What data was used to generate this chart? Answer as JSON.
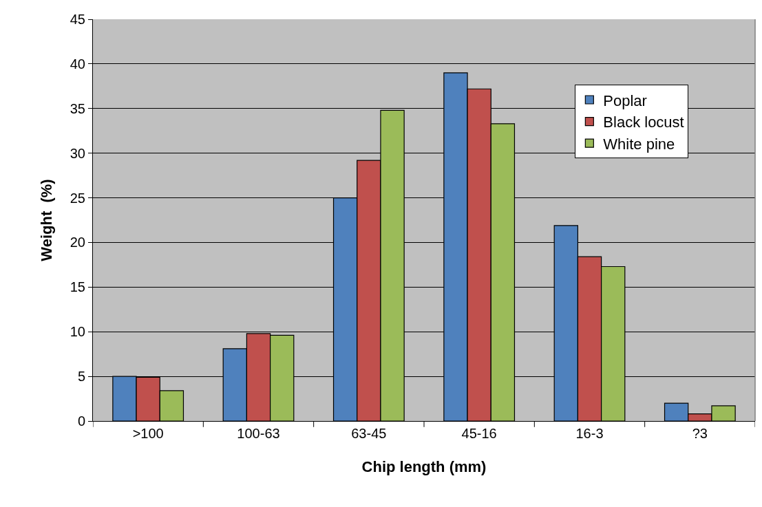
{
  "chart_data": {
    "type": "bar",
    "xlabel": "Chip length (mm)",
    "ylabel": "Weight  (%)",
    "categories": [
      ">100",
      "100-63",
      "63-45",
      "45-16",
      "16-3",
      "?3"
    ],
    "series": [
      {
        "name": "Poplar",
        "color": "#4f81bd",
        "values": [
          5.0,
          8.1,
          25.0,
          39.0,
          21.9,
          2.0
        ]
      },
      {
        "name": "Black locust",
        "color": "#c0504d",
        "values": [
          4.9,
          9.8,
          29.2,
          37.2,
          18.4,
          0.8
        ]
      },
      {
        "name": "White pine",
        "color": "#9bbb59",
        "values": [
          3.4,
          9.6,
          34.8,
          33.3,
          17.3,
          1.7
        ]
      }
    ],
    "ylim": [
      0,
      45
    ],
    "yticks": [
      0,
      5,
      10,
      15,
      20,
      25,
      30,
      35,
      40,
      45
    ],
    "grid": "y",
    "legend": "top right"
  }
}
